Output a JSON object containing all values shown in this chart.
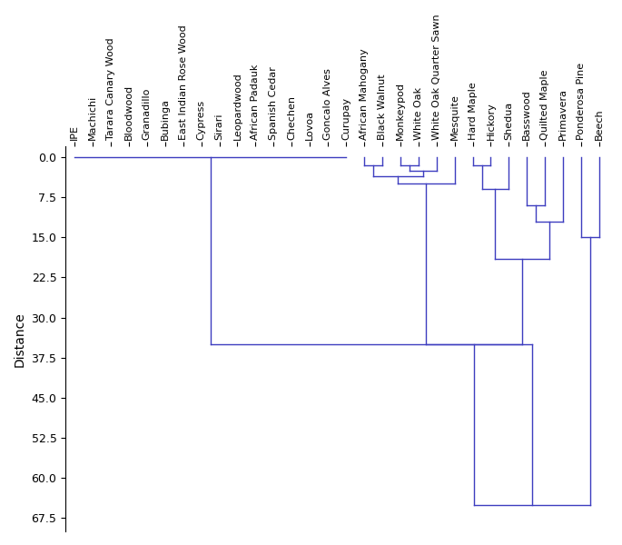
{
  "labels": [
    "IPE",
    "Machichi",
    "Tarara Canary Wood",
    "Bloodwood",
    "Granadillo",
    "Bubinga",
    "East Indian Rose Wood",
    "Cypress",
    "Sirari",
    "Leopardwood",
    "African Padauk",
    "Spanish Cedar",
    "Chechen",
    "Lovoa",
    "Goncalo Alves",
    "Curupay",
    "African Mahogany",
    "Black Walnut",
    "Monkeypod",
    "White Oak",
    "White Oak Quarter Sawn",
    "Mesquite",
    "Hard Maple",
    "Hickory",
    "Shedua",
    "Basswood",
    "Quilted Maple",
    "Primavera",
    "Ponderosa Pine",
    "Beech"
  ],
  "line_color": "#3d3dbf",
  "ylabel": "Distance",
  "yticks": [
    0.0,
    7.5,
    15.0,
    22.5,
    30.0,
    37.5,
    45.0,
    52.5,
    60.0,
    67.5
  ],
  "ylim": [
    70,
    -2
  ],
  "figsize": [
    6.85,
    6.0
  ],
  "dpi": 100,
  "label_fontsize": 8,
  "ylabel_fontsize": 10,
  "ytick_fontsize": 9
}
